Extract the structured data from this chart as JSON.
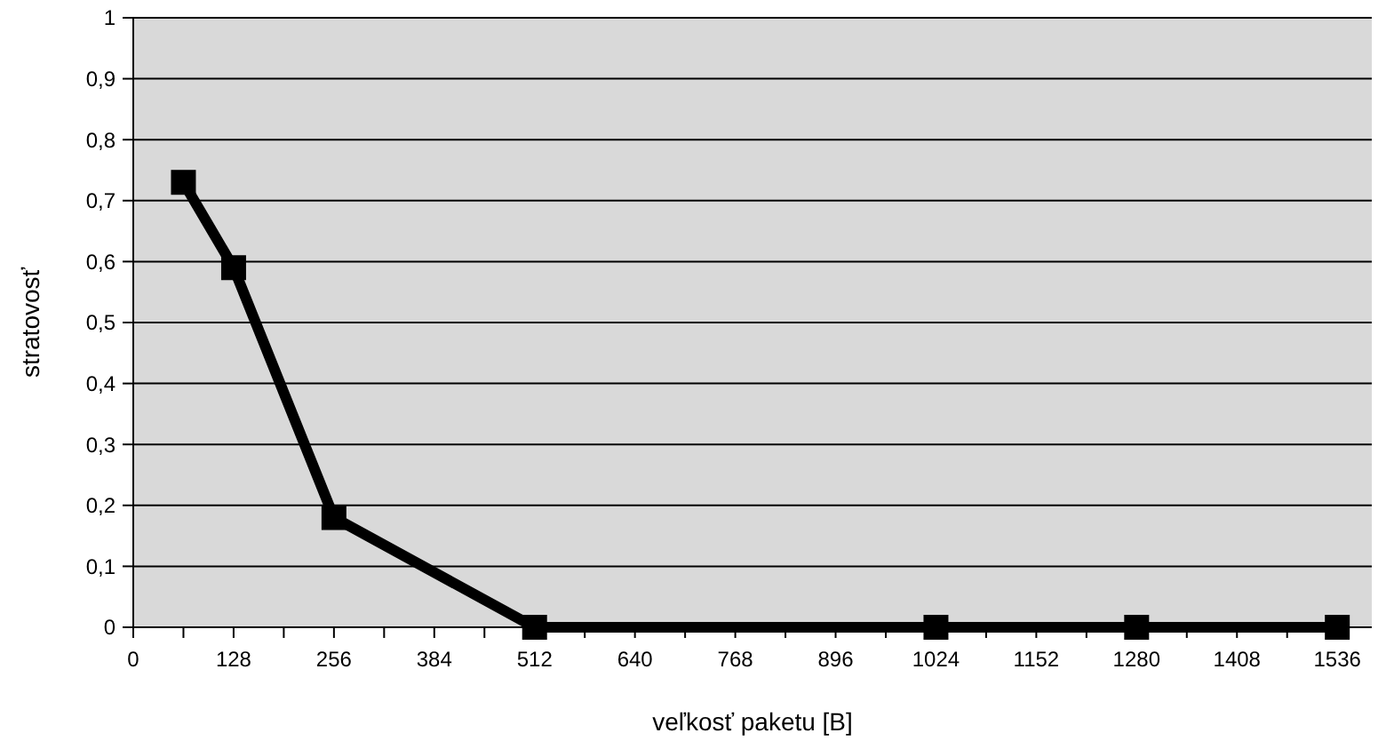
{
  "chart_data": {
    "type": "line",
    "xlabel": "veľkosť paketu [B]",
    "ylabel": "stratovosť",
    "x": [
      64,
      128,
      256,
      512,
      1024,
      1280,
      1536
    ],
    "series": [
      {
        "color": "#000000",
        "values": [
          0.73,
          0.59,
          0.18,
          0,
          0,
          0,
          0
        ]
      }
    ],
    "xlim": [
      0,
      1580
    ],
    "xticks": [
      0,
      {
        "value": 64,
        "label": null
      },
      128,
      {
        "value": 192,
        "label": null
      },
      256,
      {
        "value": 320,
        "label": null
      },
      384,
      {
        "value": 448,
        "label": null
      },
      512,
      {
        "value": 576,
        "label": null
      },
      640,
      {
        "value": 704,
        "label": null
      },
      768,
      {
        "value": 832,
        "label": null
      },
      896,
      {
        "value": 960,
        "label": null
      },
      1024,
      {
        "value": 1088,
        "label": null
      },
      1152,
      {
        "value": 1216,
        "label": null
      },
      1280,
      {
        "value": 1344,
        "label": null
      },
      1408,
      {
        "value": 1472,
        "label": null
      },
      1536
    ],
    "ylim": [
      0,
      1
    ],
    "yticks": [
      {
        "value": 0,
        "label": "0"
      },
      {
        "value": 0.1,
        "label": "0,1"
      },
      {
        "value": 0.2,
        "label": "0,2"
      },
      {
        "value": 0.3,
        "label": "0,3"
      },
      {
        "value": 0.4,
        "label": "0,4"
      },
      {
        "value": 0.5,
        "label": "0,5"
      },
      {
        "value": 0.6,
        "label": "0,6"
      },
      {
        "value": 0.7,
        "label": "0,7"
      },
      {
        "value": 0.8,
        "label": "0,8"
      },
      {
        "value": 0.9,
        "label": "0,9"
      },
      {
        "value": 1,
        "label": "1"
      }
    ],
    "grid": "y",
    "marker": "square",
    "line_style": "solid"
  }
}
